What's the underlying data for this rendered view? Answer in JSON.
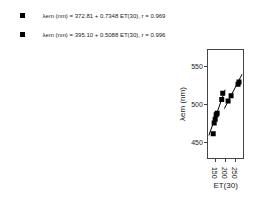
{
  "chart_data": {
    "type": "scatter",
    "x_label": "ET(30)",
    "y_label": "λem (nm)",
    "series": [
      {
        "name": "λem (nm) = 372.81 + 0.7348 ET(30), r = 0.969",
        "color": "#000000",
        "marker": "square",
        "x": [
          140,
          145,
          150,
          155,
          160,
          183,
          188
        ],
        "values": [
          462,
          476,
          481,
          487,
          489,
          507,
          515
        ],
        "fit": {
          "x": [
            118,
            200
          ],
          "values": [
            459.5164,
            519.77
          ]
        }
      },
      {
        "name": "λem (nm) = 395.10 + 0.5088 ET(30), r = 0.996",
        "color": "#000000",
        "marker": "square",
        "x": [
          215,
          230,
          265,
          270
        ],
        "values": [
          505,
          512,
          527,
          530
        ],
        "fit": {
          "x": [
            196,
            285
          ],
          "values": [
            494.8248,
            540.108
          ]
        }
      }
    ],
    "xlim": [
      115,
      290
    ],
    "ylim": [
      430,
      572
    ],
    "xticks": [
      150,
      200,
      250
    ],
    "yticks": [
      450,
      500,
      550
    ],
    "grid": false,
    "legend": "upper left"
  }
}
